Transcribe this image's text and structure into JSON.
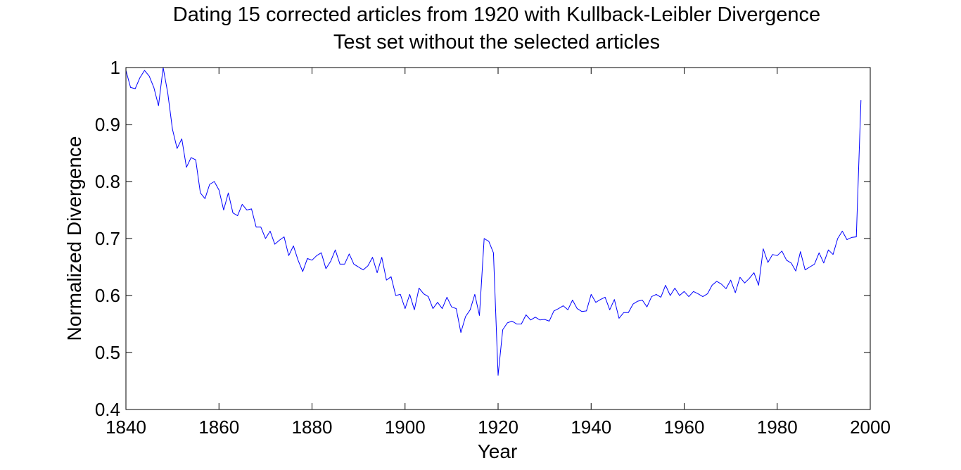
{
  "chart_data": {
    "type": "line",
    "title": "Dating 15 corrected articles from 1920 with Kullback-Leibler Divergence",
    "subtitle": "Test set without the selected articles",
    "xlabel": "Year",
    "ylabel": "Normalized Divergence",
    "xlim": [
      1840,
      2000
    ],
    "ylim": [
      0.4,
      1.0
    ],
    "xticks": [
      "1840",
      "1860",
      "1880",
      "1900",
      "1920",
      "1940",
      "1960",
      "1980",
      "2000"
    ],
    "yticks": [
      "0.4",
      "0.5",
      "0.6",
      "0.7",
      "0.8",
      "0.9",
      "1"
    ],
    "grid": false,
    "line_color": "#0000ff",
    "series": [
      {
        "x": [
          1840,
          1841,
          1842,
          1843,
          1844,
          1845,
          1846,
          1847,
          1848,
          1849,
          1850,
          1851,
          1852,
          1853,
          1854,
          1855,
          1856,
          1857,
          1858,
          1859,
          1860,
          1861,
          1862,
          1863,
          1864,
          1865,
          1866,
          1867,
          1868,
          1869,
          1870,
          1871,
          1872,
          1873,
          1874,
          1875,
          1876,
          1877,
          1878,
          1879,
          1880,
          1881,
          1882,
          1883,
          1884,
          1885,
          1886,
          1887,
          1888,
          1889,
          1890,
          1891,
          1892,
          1893,
          1894,
          1895,
          1896,
          1897,
          1898,
          1899,
          1900,
          1901,
          1902,
          1903,
          1904,
          1905,
          1906,
          1907,
          1908,
          1909,
          1910,
          1911,
          1912,
          1913,
          1914,
          1915,
          1916,
          1917,
          1918,
          1919,
          1920,
          1921,
          1922,
          1923,
          1924,
          1925,
          1926,
          1927,
          1928,
          1929,
          1930,
          1931,
          1932,
          1933,
          1934,
          1935,
          1936,
          1937,
          1938,
          1939,
          1940,
          1941,
          1942,
          1943,
          1944,
          1945,
          1946,
          1947,
          1948,
          1949,
          1950,
          1951,
          1952,
          1953,
          1954,
          1955,
          1956,
          1957,
          1958,
          1959,
          1960,
          1961,
          1962,
          1963,
          1964,
          1965,
          1966,
          1967,
          1968,
          1969,
          1970,
          1971,
          1972,
          1973,
          1974,
          1975,
          1976,
          1977,
          1978,
          1979,
          1980,
          1981,
          1982,
          1983,
          1984,
          1985,
          1986,
          1987,
          1988,
          1989,
          1990,
          1991,
          1992,
          1993,
          1994,
          1995,
          1996,
          1997,
          1998
        ],
        "values": [
          0.995,
          0.965,
          0.963,
          0.982,
          0.995,
          0.985,
          0.965,
          0.933,
          1.0,
          0.955,
          0.892,
          0.858,
          0.875,
          0.825,
          0.842,
          0.838,
          0.78,
          0.77,
          0.795,
          0.8,
          0.785,
          0.75,
          0.78,
          0.745,
          0.74,
          0.76,
          0.75,
          0.752,
          0.72,
          0.72,
          0.7,
          0.713,
          0.69,
          0.697,
          0.703,
          0.67,
          0.687,
          0.662,
          0.642,
          0.665,
          0.662,
          0.67,
          0.675,
          0.647,
          0.66,
          0.68,
          0.655,
          0.655,
          0.673,
          0.655,
          0.65,
          0.645,
          0.652,
          0.667,
          0.64,
          0.667,
          0.627,
          0.633,
          0.6,
          0.602,
          0.577,
          0.602,
          0.575,
          0.613,
          0.603,
          0.598,
          0.577,
          0.588,
          0.577,
          0.597,
          0.58,
          0.577,
          0.535,
          0.563,
          0.575,
          0.602,
          0.565,
          0.7,
          0.695,
          0.675,
          0.46,
          0.54,
          0.552,
          0.555,
          0.55,
          0.55,
          0.566,
          0.557,
          0.562,
          0.557,
          0.558,
          0.555,
          0.573,
          0.577,
          0.582,
          0.575,
          0.592,
          0.577,
          0.572,
          0.573,
          0.602,
          0.588,
          0.593,
          0.597,
          0.575,
          0.593,
          0.56,
          0.57,
          0.57,
          0.585,
          0.59,
          0.592,
          0.58,
          0.598,
          0.602,
          0.597,
          0.618,
          0.6,
          0.613,
          0.6,
          0.607,
          0.598,
          0.607,
          0.603,
          0.598,
          0.603,
          0.618,
          0.625,
          0.62,
          0.612,
          0.627,
          0.605,
          0.632,
          0.622,
          0.63,
          0.64,
          0.618,
          0.682,
          0.658,
          0.672,
          0.67,
          0.678,
          0.662,
          0.657,
          0.643,
          0.677,
          0.645,
          0.65,
          0.655,
          0.675,
          0.657,
          0.68,
          0.672,
          0.7,
          0.713,
          0.698,
          0.702,
          0.703,
          0.943
        ]
      }
    ]
  }
}
